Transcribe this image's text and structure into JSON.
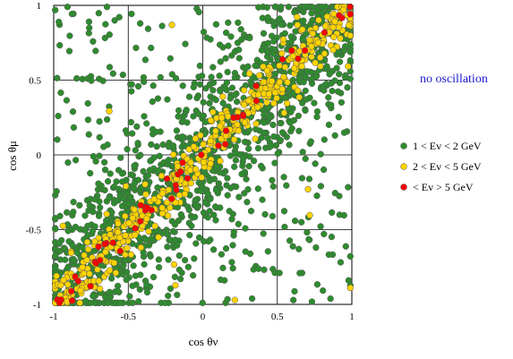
{
  "chart_data": {
    "type": "scatter",
    "title": "",
    "xlabel": "cos θν",
    "ylabel": "cos θμ",
    "xlim": [
      -1,
      1
    ],
    "ylim": [
      -1,
      1
    ],
    "x_ticks": [
      "-1",
      "-0.5",
      "0",
      "0.5",
      "1"
    ],
    "y_ticks": [
      "-1",
      "-0.5",
      "0",
      "0.5",
      "1"
    ],
    "grid": true,
    "legend_position": "right",
    "annotation": "no oscillation",
    "series": [
      {
        "name": "1 < Ev < 2 GeV",
        "color": "#2e8b2e",
        "count": 1600,
        "spread": 0.34,
        "noise_fraction": 0.22
      },
      {
        "name": "2 < Ev < 5 GeV",
        "color": "#ffd400",
        "count": 480,
        "spread": 0.12,
        "noise_fraction": 0.03
      },
      {
        "name": "< Ev > 5 GeV",
        "color": "#ff0000",
        "count": 50,
        "spread": 0.07,
        "noise_fraction": 0.0
      }
    ]
  }
}
